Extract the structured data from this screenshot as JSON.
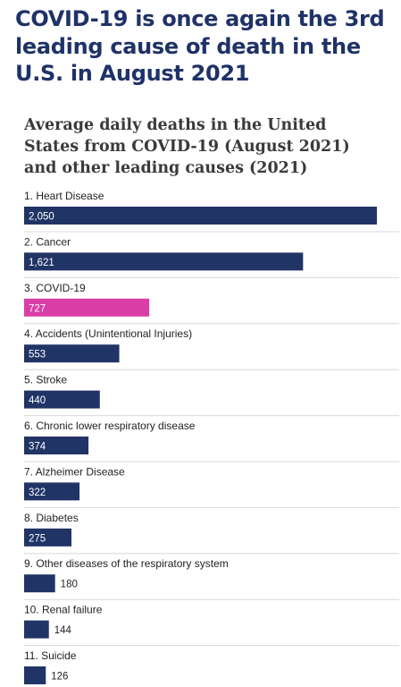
{
  "headline": "COVID-19 is once again the 3rd leading cause of death in the U.S. in August 2021",
  "colors": {
    "bar": "#213466",
    "highlight": "#db3da6",
    "headline": "#1f3268",
    "separator": "#d9d9d9"
  },
  "chart_data": {
    "type": "bar",
    "orientation": "horizontal",
    "title": "Average daily deaths in the United States from COVID-19 (August 2021) and other leading causes (2021)",
    "highlight_category": "3. COVID-19",
    "categories": [
      "1. Heart Disease",
      "2. Cancer",
      "3. COVID-19",
      "4. Accidents (Unintentional Injuries)",
      "5. Stroke",
      "6. Chronic lower respiratory disease",
      "7. Alzheimer Disease",
      "8. Diabetes",
      "9. Other diseases of the respiratory system",
      "10. Renal failure",
      "11. Suicide"
    ],
    "values": [
      2050,
      1621,
      727,
      553,
      440,
      374,
      322,
      275,
      180,
      144,
      126
    ],
    "value_labels": [
      "2,050",
      "1,621",
      "727",
      "553",
      "440",
      "374",
      "322",
      "275",
      "180",
      "144",
      "126"
    ],
    "xlim": [
      0,
      2050
    ],
    "grid": false,
    "legend": "none"
  }
}
